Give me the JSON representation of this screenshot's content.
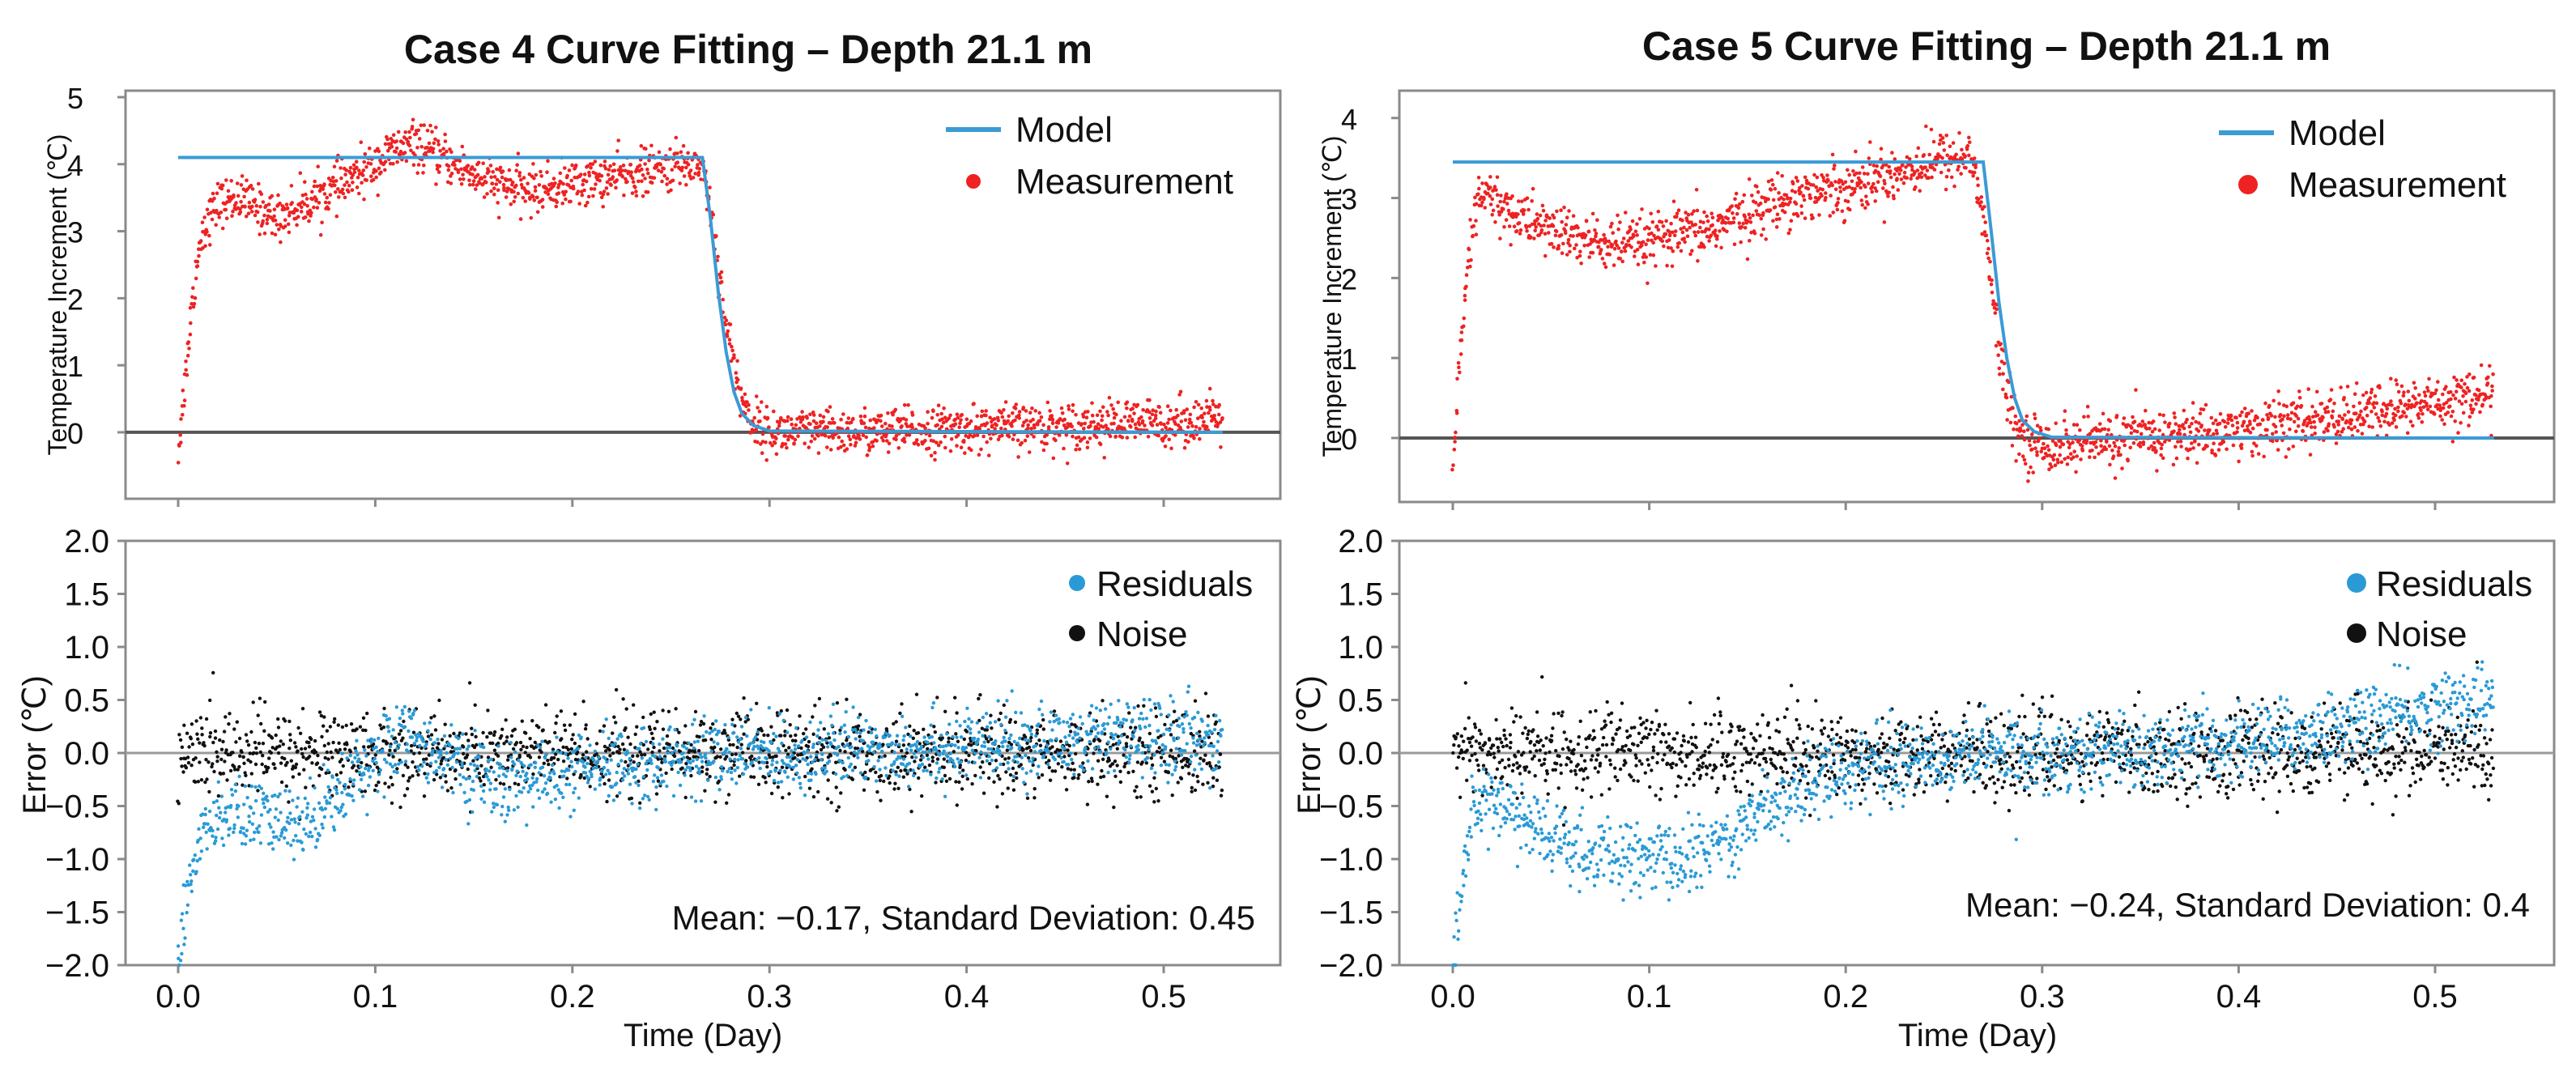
{
  "chart_data": [
    {
      "panel": "case4-temperature",
      "type": "scatter",
      "title": "Case 4 Curve Fitting – Depth 21.1 m",
      "ylabel": "Temperature Increment (℃)",
      "y_ticks": [
        "5",
        "4",
        "3",
        "2",
        "1",
        "0"
      ],
      "ylim": [
        -0.75,
        5.0
      ],
      "xlim": [
        -0.02,
        0.545
      ],
      "legend": [
        "Model",
        "Measurement"
      ],
      "legend_position": "top-right",
      "series": [
        {
          "name": "Model",
          "kind": "line",
          "color": "#3a9bd5",
          "x": [
            0.0,
            0.266,
            0.27,
            0.274,
            0.278,
            0.282,
            0.286,
            0.292,
            0.3,
            0.53
          ],
          "y": [
            4.1,
            4.1,
            3.2,
            2.1,
            1.2,
            0.6,
            0.28,
            0.1,
            0.02,
            0.0
          ]
        },
        {
          "name": "Measurement",
          "kind": "scatter",
          "color": "#ee2222",
          "x": [
            0.0,
            0.003,
            0.006,
            0.009,
            0.012,
            0.02,
            0.03,
            0.05,
            0.07,
            0.09,
            0.11,
            0.12,
            0.14,
            0.16,
            0.18,
            0.2,
            0.22,
            0.24,
            0.26,
            0.266,
            0.272,
            0.278,
            0.285,
            0.29,
            0.3,
            0.35,
            0.4,
            0.45,
            0.5,
            0.53
          ],
          "y": [
            -0.3,
            0.6,
            1.6,
            2.4,
            3.0,
            3.4,
            3.5,
            3.2,
            3.5,
            3.8,
            4.2,
            4.3,
            4.0,
            3.7,
            3.6,
            3.7,
            3.8,
            3.9,
            4.0,
            4.0,
            3.0,
            1.6,
            0.6,
            0.2,
            0.0,
            0.0,
            0.05,
            0.1,
            0.15,
            0.2
          ]
        }
      ]
    },
    {
      "panel": "case5-temperature",
      "type": "scatter",
      "title": "Case 5 Curve Fitting – Depth 21.1 m",
      "ylabel": "Temperature Increment (℃)",
      "y_ticks": [
        "4",
        "3",
        "2",
        "1",
        "0"
      ],
      "ylim": [
        -0.8,
        4.2
      ],
      "xlim": [
        -0.02,
        0.545
      ],
      "legend": [
        "Model",
        "Measurement"
      ],
      "legend_position": "top-right",
      "series": [
        {
          "name": "Model",
          "kind": "line",
          "color": "#3a9bd5",
          "x": [
            0.0,
            0.27,
            0.274,
            0.278,
            0.282,
            0.286,
            0.29,
            0.296,
            0.305,
            0.53
          ],
          "y": [
            3.45,
            3.45,
            2.6,
            1.7,
            1.0,
            0.5,
            0.22,
            0.08,
            0.01,
            0.0
          ]
        },
        {
          "name": "Measurement",
          "kind": "scatter",
          "color": "#ee2222",
          "x": [
            0.0,
            0.004,
            0.008,
            0.012,
            0.016,
            0.03,
            0.05,
            0.07,
            0.09,
            0.11,
            0.13,
            0.15,
            0.17,
            0.19,
            0.21,
            0.23,
            0.25,
            0.265,
            0.272,
            0.278,
            0.284,
            0.29,
            0.3,
            0.35,
            0.4,
            0.45,
            0.5,
            0.53
          ],
          "y": [
            -0.3,
            1.0,
            2.2,
            2.9,
            3.05,
            2.8,
            2.6,
            2.45,
            2.4,
            2.5,
            2.6,
            2.8,
            3.0,
            3.1,
            3.2,
            3.35,
            3.5,
            3.5,
            2.4,
            1.1,
            0.3,
            0.0,
            -0.1,
            0.0,
            0.1,
            0.25,
            0.45,
            0.55
          ]
        }
      ]
    },
    {
      "panel": "case4-error",
      "type": "scatter",
      "xlabel": "Time (Day)",
      "ylabel": "Error (℃)",
      "x_ticks": [
        "0.0",
        "0.1",
        "0.2",
        "0.3",
        "0.4",
        "0.5"
      ],
      "y_ticks": [
        "2.0",
        "1.5",
        "1.0",
        "0.5",
        "0.0",
        "−0.5",
        "−1.0",
        "−1.5",
        "−2.0"
      ],
      "ylim": [
        -2.0,
        2.0
      ],
      "xlim": [
        -0.02,
        0.545
      ],
      "legend": [
        "Residuals",
        "Noise"
      ],
      "legend_position": "top-right",
      "stats_text": "Mean: −0.17, Standard Deviation: 0.45",
      "series": [
        {
          "name": "Residuals",
          "kind": "scatter",
          "color": "#2a9ad6",
          "x": [
            0.0,
            0.005,
            0.01,
            0.02,
            0.04,
            0.06,
            0.08,
            0.1,
            0.12,
            0.14,
            0.16,
            0.18,
            0.2,
            0.24,
            0.28,
            0.32,
            0.36,
            0.4,
            0.44,
            0.48,
            0.52
          ],
          "y": [
            -1.9,
            -1.3,
            -0.9,
            -0.6,
            -0.6,
            -0.7,
            -0.4,
            0.0,
            0.15,
            -0.1,
            -0.3,
            -0.25,
            -0.2,
            -0.1,
            0.0,
            0.0,
            0.05,
            0.05,
            0.1,
            0.15,
            0.15
          ]
        },
        {
          "name": "Noise",
          "kind": "scatter",
          "color": "#111111",
          "x": [
            0.0,
            0.05,
            0.1,
            0.15,
            0.2,
            0.25,
            0.3,
            0.35,
            0.4,
            0.45,
            0.5,
            0.53
          ],
          "y": [
            0.0,
            0.0,
            0.0,
            0.0,
            0.0,
            0.0,
            0.0,
            0.0,
            0.0,
            0.0,
            0.0,
            0.0
          ]
        }
      ]
    },
    {
      "panel": "case5-error",
      "type": "scatter",
      "xlabel": "Time (Day)",
      "ylabel": "Error (℃)",
      "x_ticks": [
        "0.0",
        "0.1",
        "0.2",
        "0.3",
        "0.4",
        "0.5"
      ],
      "y_ticks": [
        "2.0",
        "1.5",
        "1.0",
        "0.5",
        "0.0",
        "−0.5",
        "−1.0",
        "−1.5",
        "−2.0"
      ],
      "ylim": [
        -2.0,
        2.0
      ],
      "xlim": [
        -0.02,
        0.545
      ],
      "legend": [
        "Residuals",
        "Noise"
      ],
      "legend_position": "top-right",
      "stats_text": "Mean: −0.24, Standard Deviation: 0.4",
      "series": [
        {
          "name": "Residuals",
          "kind": "scatter",
          "color": "#2a9ad6",
          "x": [
            0.0,
            0.005,
            0.01,
            0.02,
            0.04,
            0.06,
            0.08,
            0.1,
            0.12,
            0.14,
            0.16,
            0.18,
            0.2,
            0.24,
            0.28,
            0.32,
            0.36,
            0.4,
            0.44,
            0.48,
            0.52
          ],
          "y": [
            -2.0,
            -1.2,
            -0.6,
            -0.4,
            -0.7,
            -0.9,
            -1.0,
            -1.0,
            -1.0,
            -0.8,
            -0.5,
            -0.3,
            -0.15,
            -0.05,
            0.0,
            0.0,
            0.05,
            0.1,
            0.2,
            0.35,
            0.5
          ]
        },
        {
          "name": "Noise",
          "kind": "scatter",
          "color": "#111111",
          "x": [
            0.0,
            0.05,
            0.1,
            0.15,
            0.2,
            0.25,
            0.3,
            0.35,
            0.4,
            0.45,
            0.5,
            0.53
          ],
          "y": [
            0.0,
            0.0,
            0.0,
            0.0,
            0.0,
            0.0,
            0.0,
            0.0,
            0.0,
            0.0,
            0.0,
            0.0
          ]
        }
      ]
    }
  ]
}
